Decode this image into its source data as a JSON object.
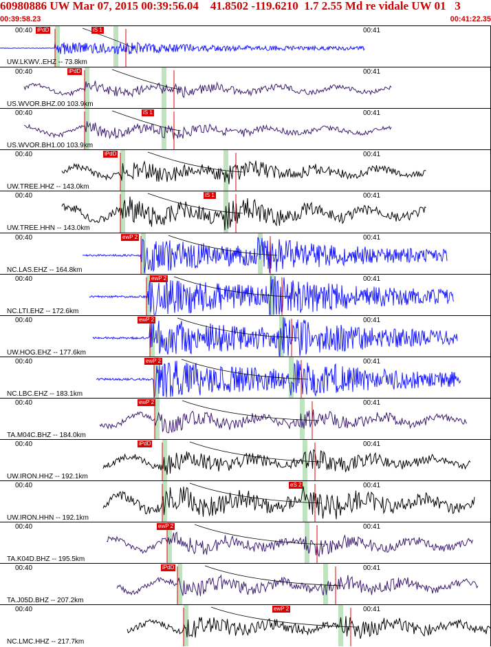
{
  "header": {
    "title": "60980886 UW Mar 07, 2015 00:39:56.04    41.8502 -119.6210  1.7 2.55 Md re vidale UW 01   3",
    "start_time": "00:39:58.23",
    "end_time": "00:41:22.35"
  },
  "colors": {
    "header_text": "#cc0000",
    "pick": "#dd0000",
    "green_band": "#bfe3bf",
    "blue": "#1a1aff",
    "purple": "#3a1a6e",
    "black": "#000000"
  },
  "time_ticks": [
    "00:40",
    "00:41"
  ],
  "traces": [
    {
      "label": "UW.LKWV..EHZ -- 73.8km",
      "color": "#1a1aff",
      "pick": "iPdD",
      "pick2": "iS 1",
      "amp": 5
    },
    {
      "label": "US.WVOR.BHZ.00 103.9km",
      "color": "#3a1a6e",
      "pick": "iPdD",
      "pick2": "",
      "amp": 12
    },
    {
      "label": "US.WVOR.BH1.00 103.9km",
      "color": "#3a1a6e",
      "pick": "iS 1",
      "pick2": "",
      "amp": 12
    },
    {
      "label": "UW.TREE.HHZ -- 143.0km",
      "color": "#000000",
      "pick": "iPdD",
      "pick2": "",
      "amp": 14
    },
    {
      "label": "UW.TREE.HHN -- 143.0km",
      "color": "#000000",
      "pick": "iS 1",
      "pick2": "",
      "amp": 18
    },
    {
      "label": "NC.LAS.EHZ -- 164.8km",
      "color": "#1a1aff",
      "pick": "ewP 2",
      "pick2": "",
      "amp": 14
    },
    {
      "label": "NC.LTI.EHZ -- 172.6km",
      "color": "#1a1aff",
      "pick": "ewP 2",
      "pick2": "",
      "amp": 16
    },
    {
      "label": "UW.HOG.EHZ -- 177.6km",
      "color": "#1a1aff",
      "pick": "ewP 2",
      "pick2": "",
      "amp": 16
    },
    {
      "label": "NC.LBC.EHZ -- 183.1km",
      "color": "#1a1aff",
      "pick": "ewP 2",
      "pick2": "",
      "amp": 16
    },
    {
      "label": "TA.M04C.BHZ -- 184.0km",
      "color": "#3a1a6e",
      "pick": "ewP 2",
      "pick2": "",
      "amp": 16
    },
    {
      "label": "UW.IRON.HHZ -- 192.1km",
      "color": "#000000",
      "pick": "iPdD",
      "pick2": "",
      "amp": 14
    },
    {
      "label": "UW.IRON.HHN -- 192.1km",
      "color": "#000000",
      "pick": "eS 2",
      "pick2": "",
      "amp": 20
    },
    {
      "label": "TA.K04D.BHZ -- 195.5km",
      "color": "#3a1a6e",
      "pick": "ewP 2",
      "pick2": "",
      "amp": 16
    },
    {
      "label": "TA.J05D.BHZ -- 207.2km",
      "color": "#3a1a6e",
      "pick": "iPdD",
      "pick2": "",
      "amp": 16
    },
    {
      "label": "NC.LMC.HHZ -- 217.7km",
      "color": "#000000",
      "pick": "ewP 2",
      "pick2": "",
      "amp": 14
    }
  ]
}
